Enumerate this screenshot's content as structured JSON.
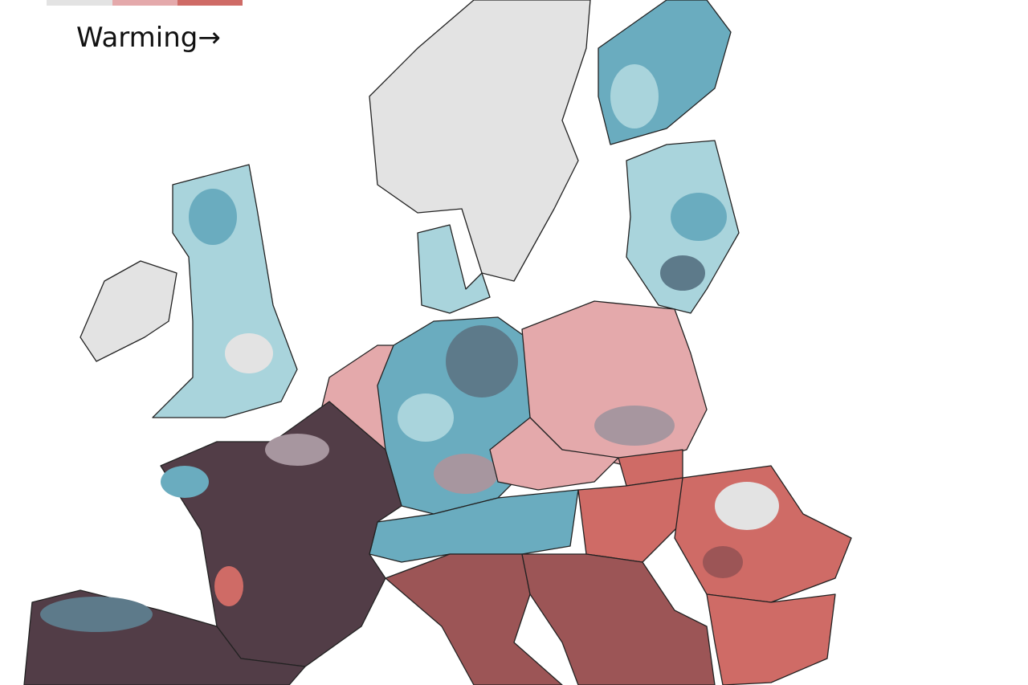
{
  "legend": {
    "label": "Warming→"
  }
}
